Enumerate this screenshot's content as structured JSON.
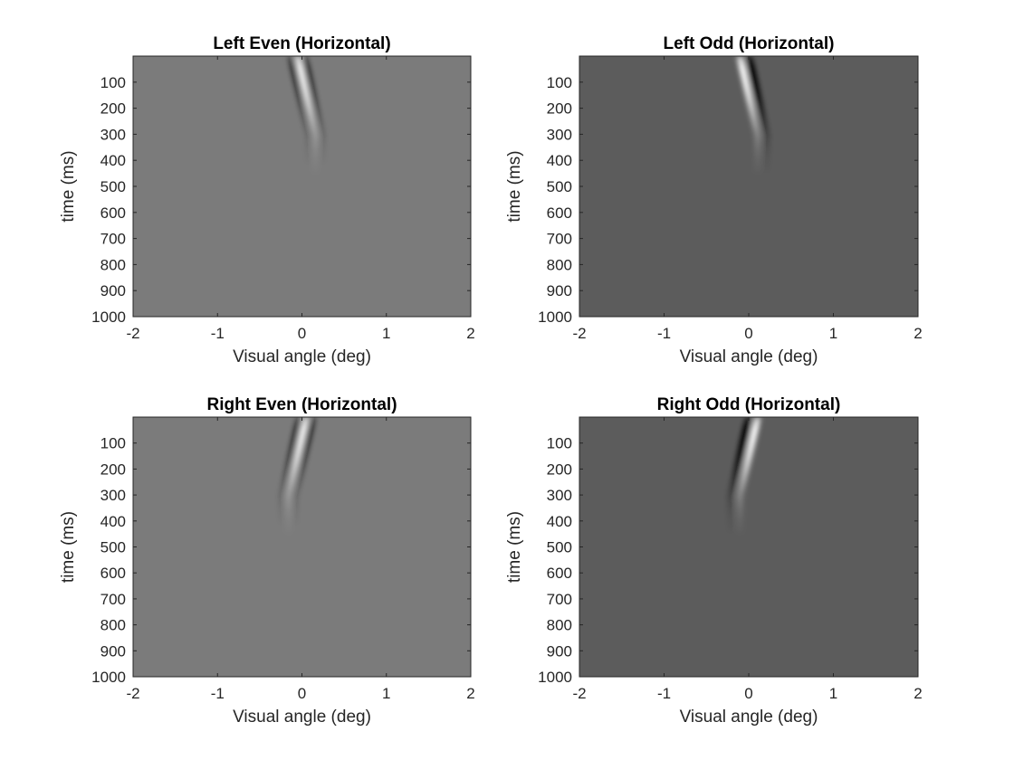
{
  "chart_data": [
    {
      "type": "heatmap",
      "title": "Left Even (Horizontal)",
      "xlabel": "Visual angle (deg)",
      "ylabel": "time (ms)",
      "xlim": [
        -2,
        2
      ],
      "ylim": [
        0,
        1000
      ],
      "xticks": [
        -2,
        -1,
        0,
        1,
        2
      ],
      "yticks": [
        100,
        200,
        300,
        400,
        500,
        600,
        700,
        800,
        900,
        1000
      ],
      "y_reversed": true,
      "background_color": "#7b7b7b",
      "kernel": {
        "center_x0": -0.05,
        "center_drift_per_100ms": 0.07,
        "lobe_spacing_deg": 0.09,
        "lobes": [
          {
            "offset": -1,
            "polarity": "dark"
          },
          {
            "offset": 0,
            "polarity": "light"
          },
          {
            "offset": 1,
            "polarity": "dark"
          }
        ],
        "peak_time_ms": 40,
        "decay_end_ms": 480
      }
    },
    {
      "type": "heatmap",
      "title": "Left Odd (Horizontal)",
      "xlabel": "Visual angle (deg)",
      "ylabel": "time (ms)",
      "xlim": [
        -2,
        2
      ],
      "ylim": [
        0,
        1000
      ],
      "xticks": [
        -2,
        -1,
        0,
        1,
        2
      ],
      "yticks": [
        100,
        200,
        300,
        400,
        500,
        600,
        700,
        800,
        900,
        1000
      ],
      "y_reversed": true,
      "background_color": "#5c5c5c",
      "kernel": {
        "center_x0": -0.05,
        "center_drift_per_100ms": 0.07,
        "lobe_spacing_deg": 0.11,
        "lobes": [
          {
            "offset": -0.5,
            "polarity": "light"
          },
          {
            "offset": 0.5,
            "polarity": "dark"
          }
        ],
        "peak_time_ms": 40,
        "decay_end_ms": 480
      }
    },
    {
      "type": "heatmap",
      "title": "Right Even (Horizontal)",
      "xlabel": "Visual angle (deg)",
      "ylabel": "time (ms)",
      "xlim": [
        -2,
        2
      ],
      "ylim": [
        0,
        1000
      ],
      "xticks": [
        -2,
        -1,
        0,
        1,
        2
      ],
      "yticks": [
        100,
        200,
        300,
        400,
        500,
        600,
        700,
        800,
        900,
        1000
      ],
      "y_reversed": true,
      "background_color": "#7b7b7b",
      "kernel": {
        "center_x0": 0.05,
        "center_drift_per_100ms": -0.07,
        "lobe_spacing_deg": 0.09,
        "lobes": [
          {
            "offset": -1,
            "polarity": "dark"
          },
          {
            "offset": 0,
            "polarity": "light"
          },
          {
            "offset": 1,
            "polarity": "dark"
          }
        ],
        "peak_time_ms": 40,
        "decay_end_ms": 480
      }
    },
    {
      "type": "heatmap",
      "title": "Right Odd (Horizontal)",
      "xlabel": "Visual angle (deg)",
      "ylabel": "time (ms)",
      "xlim": [
        -2,
        2
      ],
      "ylim": [
        0,
        1000
      ],
      "xticks": [
        -2,
        -1,
        0,
        1,
        2
      ],
      "yticks": [
        100,
        200,
        300,
        400,
        500,
        600,
        700,
        800,
        900,
        1000
      ],
      "y_reversed": true,
      "background_color": "#5c5c5c",
      "kernel": {
        "center_x0": 0.05,
        "center_drift_per_100ms": -0.07,
        "lobe_spacing_deg": 0.11,
        "lobes": [
          {
            "offset": -0.5,
            "polarity": "dark"
          },
          {
            "offset": 0.5,
            "polarity": "light"
          }
        ],
        "peak_time_ms": 40,
        "decay_end_ms": 480
      }
    }
  ]
}
